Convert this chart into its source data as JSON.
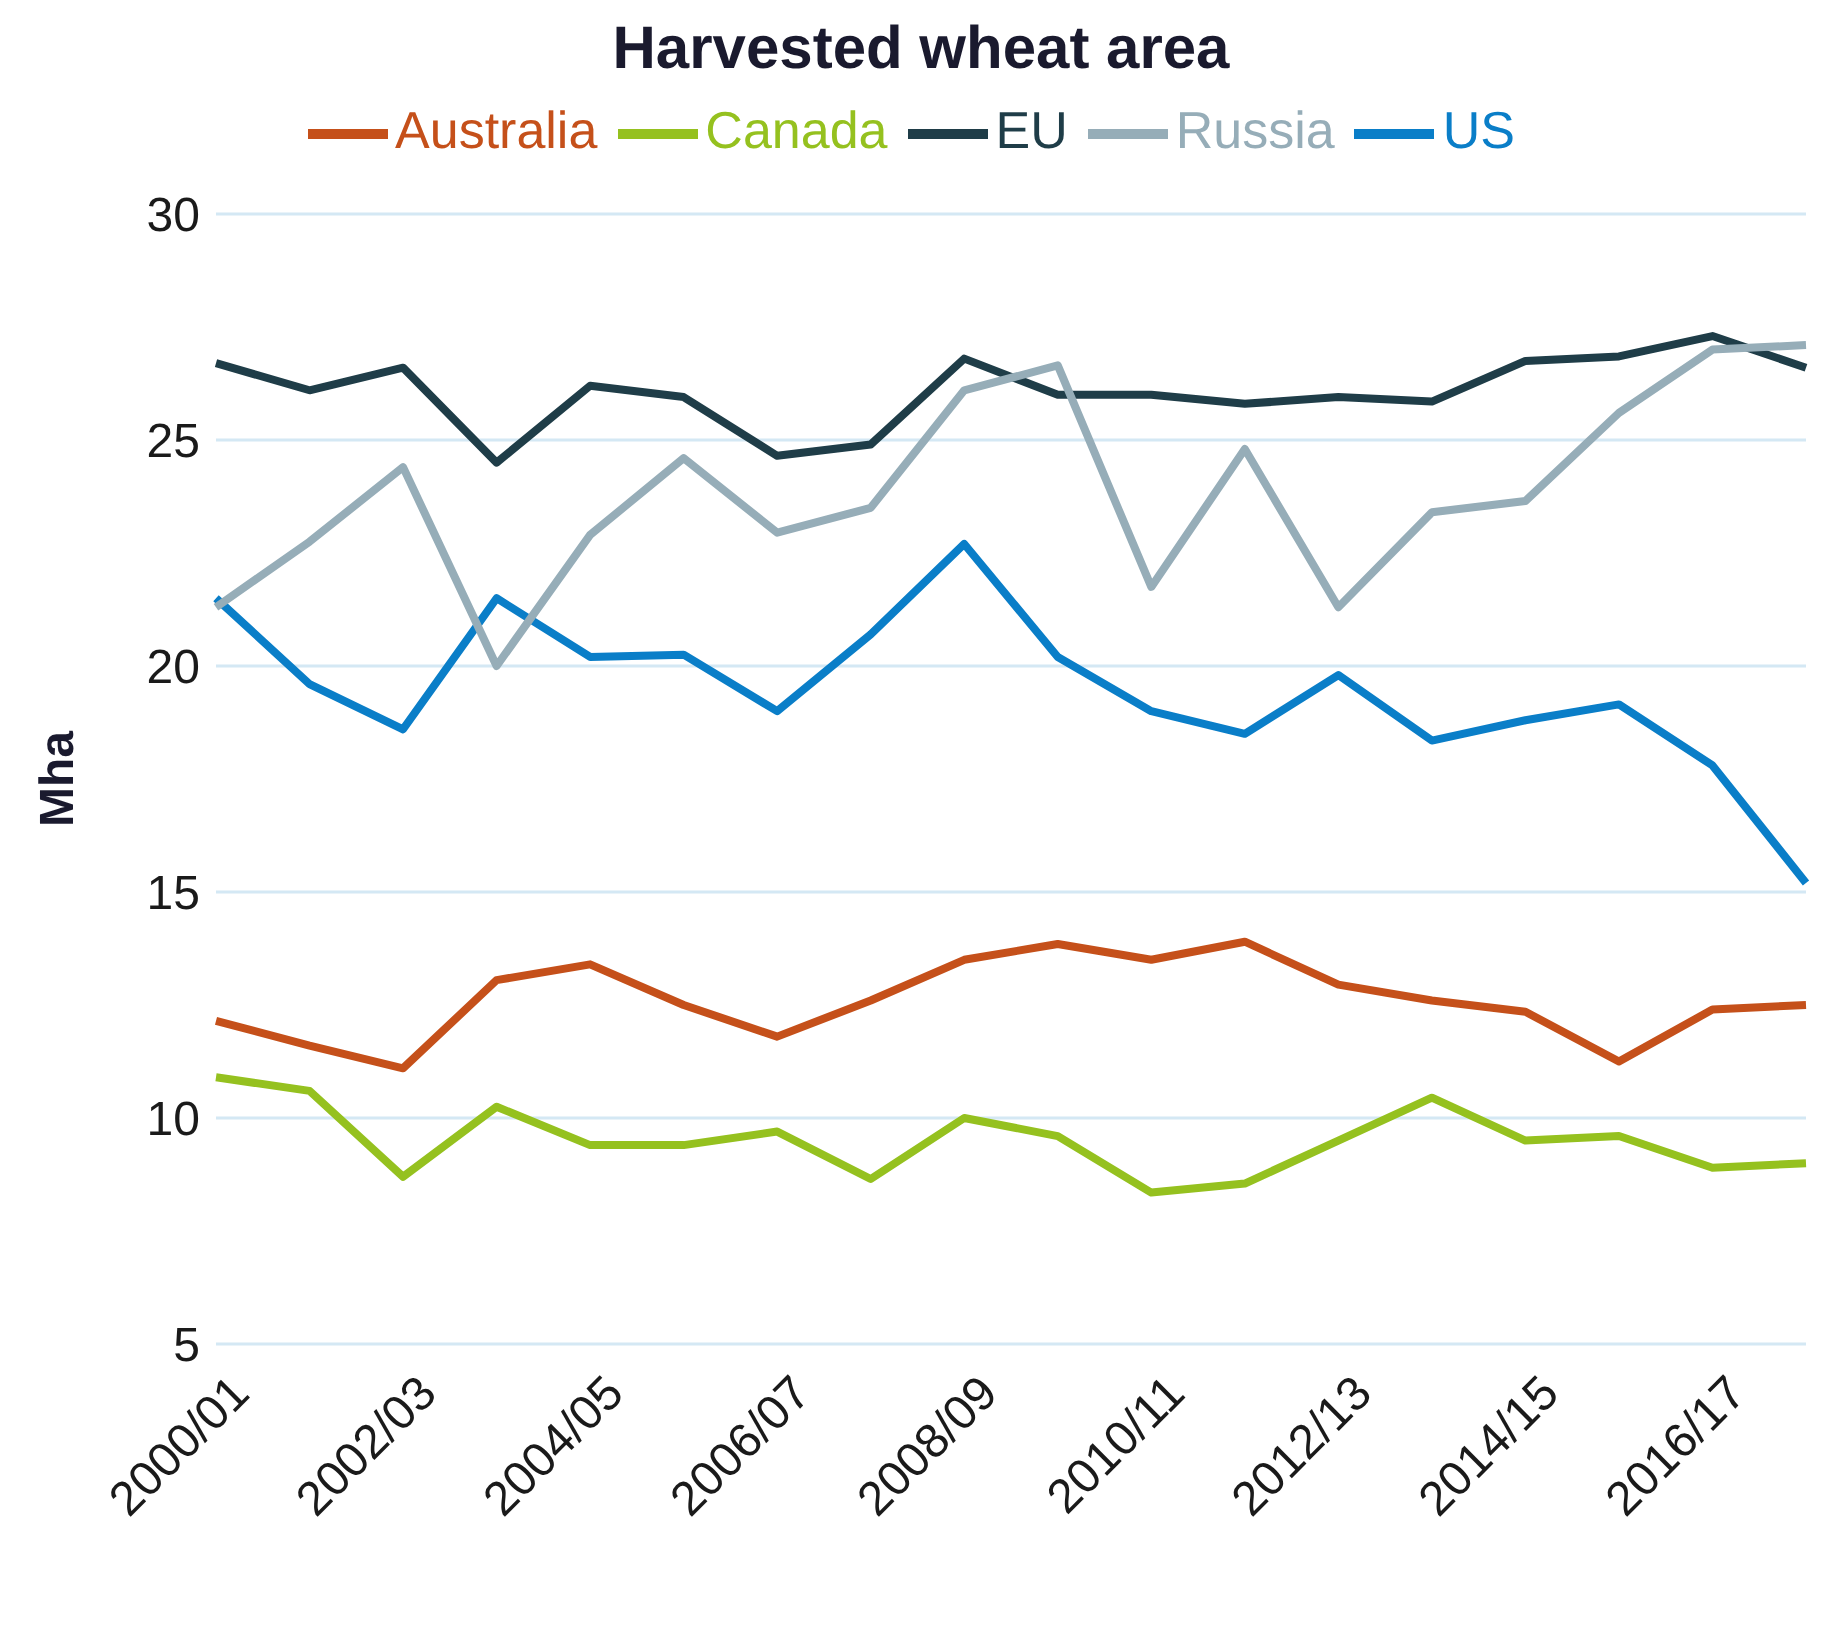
{
  "chart_data": {
    "type": "line",
    "title": "Harvested wheat area",
    "ylabel": "Mha",
    "categories": [
      "2000/01",
      null,
      "2002/03",
      null,
      "2004/05",
      null,
      "2006/07",
      null,
      "2008/09",
      null,
      "2010/11",
      null,
      "2012/13",
      null,
      "2014/15",
      null,
      "2016/17",
      null
    ],
    "series": [
      {
        "name": "US",
        "color": "#0a7ec8",
        "values": [
          21.5,
          19.6,
          18.6,
          21.5,
          20.2,
          20.25,
          19.0,
          20.7,
          22.7,
          20.2,
          19.0,
          18.5,
          19.8,
          18.35,
          18.8,
          19.15,
          17.8,
          15.2
        ]
      },
      {
        "name": "Canada",
        "color": "#95c11f",
        "values": [
          10.9,
          10.6,
          8.7,
          10.25,
          9.4,
          9.4,
          9.7,
          8.65,
          10.0,
          9.6,
          8.35,
          8.55,
          9.5,
          10.45,
          9.5,
          9.6,
          8.9,
          9.0
        ]
      },
      {
        "name": "EU",
        "color": "#1f3d48",
        "values": [
          26.7,
          26.1,
          26.6,
          24.5,
          26.2,
          25.95,
          24.65,
          24.9,
          26.8,
          26.0,
          26.0,
          25.8,
          25.95,
          25.85,
          26.75,
          26.85,
          27.3,
          26.6
        ]
      },
      {
        "name": "Australia",
        "color": "#c5501a",
        "values": [
          12.15,
          11.6,
          11.1,
          13.05,
          13.4,
          12.5,
          11.8,
          12.6,
          13.5,
          13.85,
          13.5,
          13.9,
          12.95,
          12.6,
          12.35,
          11.25,
          12.4,
          12.5
        ]
      },
      {
        "name": "Russia",
        "color": "#96adb8",
        "values": [
          21.3,
          22.75,
          24.4,
          20.0,
          22.9,
          24.6,
          22.95,
          23.5,
          26.1,
          26.65,
          21.75,
          24.8,
          21.3,
          23.4,
          23.65,
          25.6,
          27.0,
          27.1
        ]
      }
    ],
    "ylim": [
      5,
      30
    ],
    "yticks": [
      5,
      10,
      15,
      20,
      25,
      30
    ],
    "grid": "y",
    "legend": "top",
    "marker": "none",
    "line_style": "solid"
  }
}
